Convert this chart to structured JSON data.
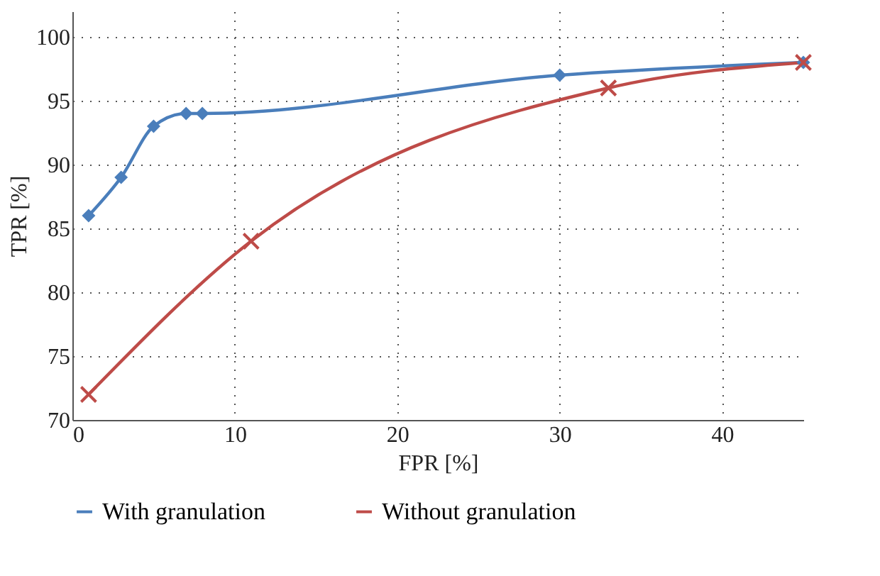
{
  "chart_data": {
    "type": "line",
    "xlabel": "FPR [%]",
    "ylabel": "TPR [%]",
    "xlim": [
      0,
      45
    ],
    "xticks": [
      0,
      10,
      20,
      30,
      40
    ],
    "ylim": [
      70,
      102
    ],
    "yticks": [
      70,
      75,
      80,
      85,
      90,
      95,
      100
    ],
    "grid": true,
    "legend": "bottom",
    "line_style": "solid",
    "series": [
      {
        "name": "With granulation",
        "color": "#4a7ebb",
        "marker": "diamond",
        "x": [
          1,
          3,
          5,
          7,
          8,
          30,
          45
        ],
        "values": [
          86,
          89,
          93,
          94,
          94,
          97,
          98
        ]
      },
      {
        "name": "Without granulation",
        "color": "#be4b48",
        "marker": "cross",
        "x": [
          1,
          11,
          33,
          45
        ],
        "values": [
          72,
          84,
          96,
          98
        ]
      }
    ]
  }
}
